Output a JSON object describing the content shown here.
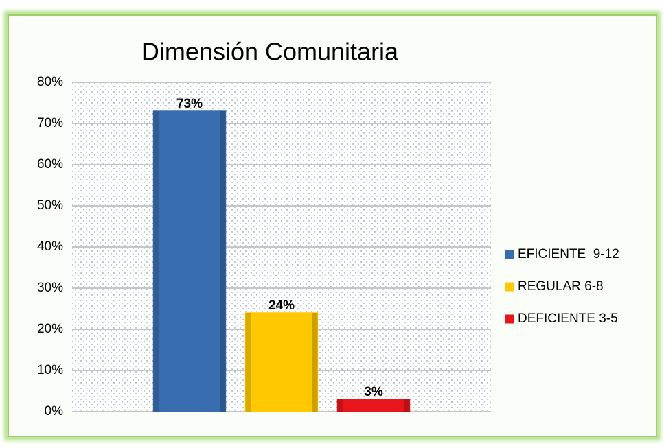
{
  "chart_data": {
    "type": "bar",
    "title": "Dimensión Comunitaria",
    "categories": [
      null
    ],
    "series": [
      {
        "name": "EFICIENTE  9-12",
        "color": "#3a6db0",
        "values": [
          73
        ],
        "value_labels": [
          "73%"
        ]
      },
      {
        "name": "REGULAR 6-8",
        "color": "#ffc800",
        "values": [
          24
        ],
        "value_labels": [
          "24%"
        ]
      },
      {
        "name": "DEFICIENTE 3-5",
        "color": "#e8161b",
        "values": [
          3
        ],
        "value_labels": [
          "3%"
        ]
      }
    ],
    "ylim": [
      0,
      80
    ],
    "yticks": [
      {
        "value": 0,
        "label": "0%"
      },
      {
        "value": 10,
        "label": "10%"
      },
      {
        "value": 20,
        "label": "20%"
      },
      {
        "value": 30,
        "label": "30%"
      },
      {
        "value": 40,
        "label": "40%"
      },
      {
        "value": 50,
        "label": "50%"
      },
      {
        "value": 60,
        "label": "60%"
      },
      {
        "value": 70,
        "label": "70%"
      },
      {
        "value": 80,
        "label": "80%"
      }
    ],
    "grid": true,
    "legend": "right"
  }
}
